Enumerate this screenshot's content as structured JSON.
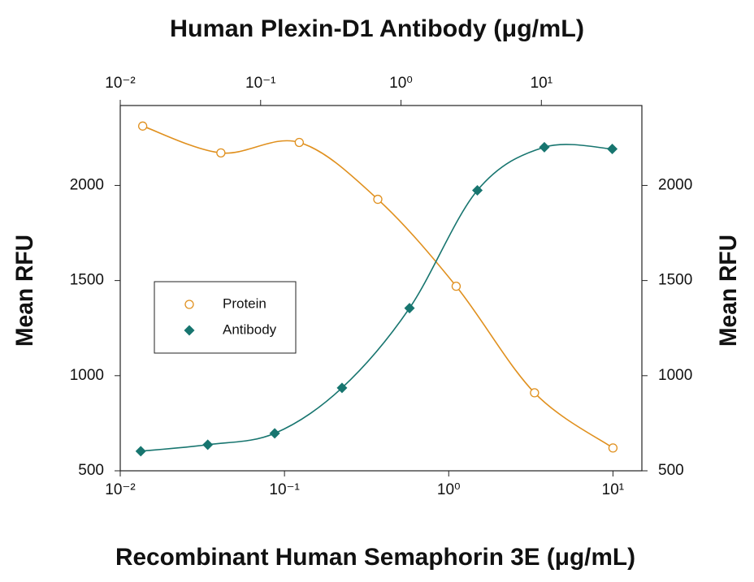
{
  "chart_data": {
    "type": "scatter",
    "title": "Human Plexin-D1 Antibody (μg/mL)",
    "xlabel": "Recombinant Human Semaphorin 3E (μg/mL)",
    "ylabel": "Mean RFU",
    "y2label": "Mean RFU",
    "xscale": "log",
    "xlim": [
      0.01,
      15
    ],
    "xticks": [
      {
        "value": 0.01,
        "label": "10⁻²"
      },
      {
        "value": 0.1,
        "label": "10⁻¹"
      },
      {
        "value": 1,
        "label": "10⁰"
      },
      {
        "value": 10,
        "label": "10¹"
      }
    ],
    "x2lim": [
      0.01,
      52
    ],
    "x2ticks": [
      {
        "value": 0.01,
        "label": "10⁻²"
      },
      {
        "value": 0.1,
        "label": "10⁻¹"
      },
      {
        "value": 1,
        "label": "10⁰"
      },
      {
        "value": 10,
        "label": "10¹"
      }
    ],
    "ylim": [
      500,
      2420
    ],
    "yticks": [
      500,
      1000,
      1500,
      2000
    ],
    "y2lim": [
      500,
      2420
    ],
    "y2ticks": [
      500,
      1000,
      1500,
      2000
    ],
    "legend": "left",
    "series": [
      {
        "name": "Protein",
        "color": "#e0901e",
        "marker": "circle",
        "xaxis": "bottom",
        "x": [
          0.0137,
          0.041,
          0.123,
          0.37,
          1.11,
          3.33,
          10
        ],
        "values": [
          2312,
          2171,
          2226,
          1927,
          1470,
          910,
          620
        ]
      },
      {
        "name": "Antibody",
        "color": "#17756f",
        "marker": "diamond",
        "xaxis": "top",
        "x": [
          0.014,
          0.042,
          0.126,
          0.38,
          1.15,
          3.5,
          10.5,
          32
        ],
        "values": [
          603,
          637,
          697,
          936,
          1355,
          1974,
          2201,
          2192
        ]
      }
    ]
  }
}
